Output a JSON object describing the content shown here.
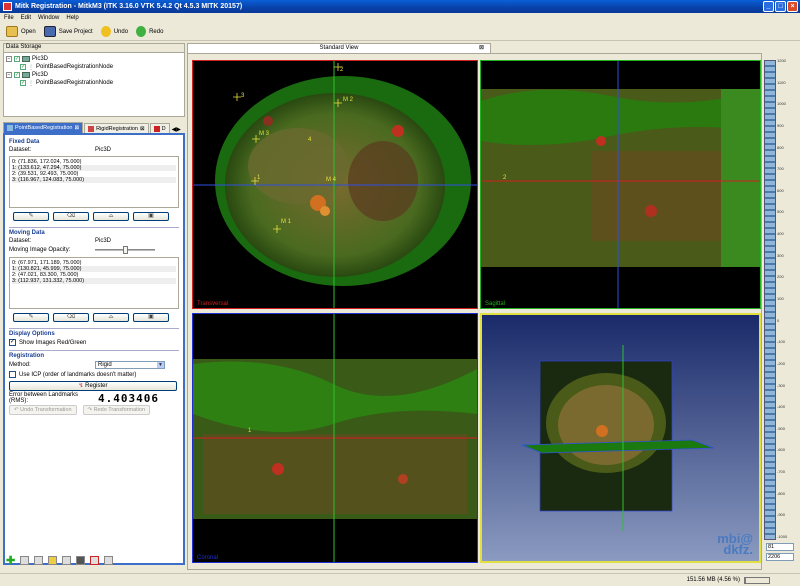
{
  "window": {
    "title": "Mitk Registration - MitkM3 (ITK 3.16.0  VTK 5.4.2 Qt 4.5.3 MITK 20157)"
  },
  "menu": [
    "File",
    "Edit",
    "Window",
    "Help"
  ],
  "toolbar": {
    "open": "Open",
    "save": "Save Project",
    "undo": "Undo",
    "redo": "Redo"
  },
  "data_storage": {
    "title": "Data Storage",
    "nodes": [
      {
        "name": "Pic3D",
        "child": "PointBasedRegistrationNode"
      },
      {
        "name": "Pic3D",
        "child": "PointBasedRegistrationNode"
      }
    ]
  },
  "tabs": [
    "PointBasedRegistration",
    "RigidRegistration",
    "D"
  ],
  "fixed": {
    "title": "Fixed Data",
    "dataset_label": "Dataset:",
    "dataset": "Pic3D",
    "points": [
      "0: (71.836, 172.024, 75.000)",
      "1: (133.612, 47.294, 75.000)",
      "2: (39.531, 92.493, 75.000)",
      "3: (116.967, 124.083, 75.000)"
    ]
  },
  "moving": {
    "title": "Moving Data",
    "dataset_label": "Dataset:",
    "dataset": "Pic3D",
    "opacity_label": "Moving Image Opacity:",
    "opacity": 0.5,
    "points": [
      "0: (67.971, 171.189, 75.000)",
      "1: (130.821, 45.999, 75.000)",
      "2: (47.021, 83.300, 75.000)",
      "3: (112.937, 131.332, 75.000)"
    ]
  },
  "display": {
    "title": "Display Options",
    "show_rg": "Show Images Red/Green",
    "show_rg_checked": true
  },
  "registration": {
    "title": "Registration",
    "method_label": "Method:",
    "method": "Rigid",
    "icp_label": "Use ICP (order of landmarks doesn't matter)",
    "register": "Register",
    "error_label": "Error between Landmarks (RMS):",
    "error_value": "4.403406",
    "undo": "Undo Transformation",
    "redo": "Redo Transformation"
  },
  "view": {
    "tab": "Standard View",
    "labels": {
      "axial": "Transversal",
      "sagittal": "Sagittal",
      "coronal": "Coronal"
    }
  },
  "landmarks": {
    "fixed": [
      "1",
      "2",
      "3",
      "4"
    ],
    "moving": [
      "M 1",
      "M 2",
      "M 3",
      "M 4"
    ],
    "sagittal": [
      "2"
    ],
    "coronal": [
      "1"
    ]
  },
  "logo": [
    "mbi@",
    "dkfz."
  ],
  "level": {
    "ticks": [
      "1200",
      "1100",
      "1000",
      "900",
      "800",
      "700",
      "600",
      "500",
      "400",
      "300",
      "200",
      "100",
      "0",
      "-100",
      "-200",
      "-300",
      "-400",
      "-500",
      "-600",
      "-700",
      "-800",
      "-900",
      "-1000"
    ],
    "bottom_val": "81",
    "top_val": "2206"
  },
  "status": {
    "memory": "151.56 MB (4.56 %)",
    "fraction": 0.0456
  },
  "colors": {
    "axial": "#d02020",
    "sagittal": "#20b020",
    "coronal": "#2030d0",
    "render3d": "#e0e040"
  }
}
